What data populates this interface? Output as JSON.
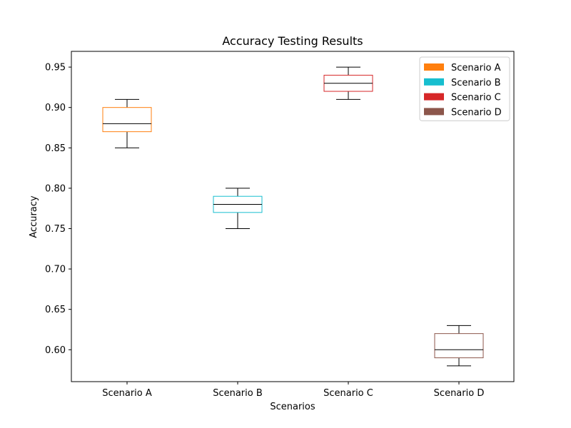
{
  "chart_data": {
    "type": "box",
    "title": "Accuracy Testing Results",
    "xlabel": "Scenarios",
    "ylabel": "Accuracy",
    "ylim": [
      0.5605,
      0.9695
    ],
    "yticks": [
      "0.60",
      "0.65",
      "0.70",
      "0.75",
      "0.80",
      "0.85",
      "0.90",
      "0.95"
    ],
    "categories": [
      "Scenario A",
      "Scenario B",
      "Scenario C",
      "Scenario D"
    ],
    "series": [
      {
        "name": "Scenario A",
        "color": "#ff7f0e",
        "min": 0.85,
        "q1": 0.87,
        "median": 0.88,
        "q3": 0.9,
        "max": 0.91
      },
      {
        "name": "Scenario B",
        "color": "#17becf",
        "min": 0.75,
        "q1": 0.77,
        "median": 0.78,
        "q3": 0.79,
        "max": 0.8
      },
      {
        "name": "Scenario C",
        "color": "#d62728",
        "min": 0.91,
        "q1": 0.92,
        "median": 0.93,
        "q3": 0.94,
        "max": 0.95
      },
      {
        "name": "Scenario D",
        "color": "#8c564b",
        "min": 0.58,
        "q1": 0.59,
        "median": 0.6,
        "q3": 0.62,
        "max": 0.63
      }
    ],
    "legend": {
      "position": "top-right"
    },
    "grid": false
  }
}
